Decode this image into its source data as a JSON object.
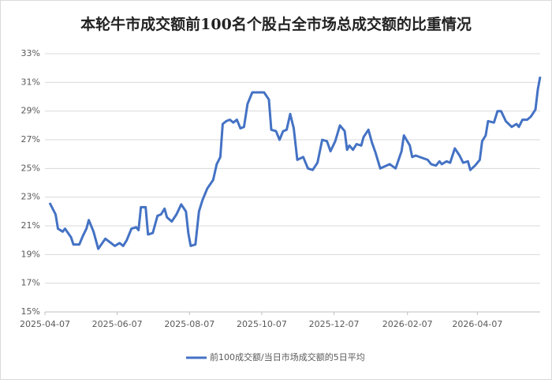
{
  "chart_data": {
    "type": "line",
    "title": "本轮牛市成交额前100名个股占全市场总成交额的比重情况",
    "x": [
      "2025-04-11",
      "2025-04-16",
      "2025-04-18",
      "2025-04-22",
      "2025-04-24",
      "2025-04-29",
      "2025-05-01",
      "2025-05-06",
      "2025-05-09",
      "2025-05-12",
      "2025-05-14",
      "2025-05-18",
      "2025-05-22",
      "2025-05-28",
      "2025-06-05",
      "2025-06-09",
      "2025-06-12",
      "2025-06-15",
      "2025-06-19",
      "2025-06-23",
      "2025-06-25",
      "2025-06-27",
      "2025-07-01",
      "2025-07-03",
      "2025-07-07",
      "2025-07-11",
      "2025-07-14",
      "2025-07-17",
      "2025-07-19",
      "2025-07-23",
      "2025-07-27",
      "2025-07-31",
      "2025-08-04",
      "2025-08-06",
      "2025-08-08",
      "2025-08-12",
      "2025-08-15",
      "2025-08-18",
      "2025-08-22",
      "2025-08-27",
      "2025-08-30",
      "2025-09-02",
      "2025-09-04",
      "2025-09-07",
      "2025-09-10",
      "2025-09-13",
      "2025-09-16",
      "2025-09-19",
      "2025-09-22",
      "2025-09-25",
      "2025-09-29",
      "2025-10-09",
      "2025-10-13",
      "2025-10-15",
      "2025-10-19",
      "2025-10-22",
      "2025-10-25",
      "2025-10-28",
      "2025-10-31",
      "2025-11-03",
      "2025-11-06",
      "2025-11-11",
      "2025-11-15",
      "2025-11-19",
      "2025-11-23",
      "2025-11-27",
      "2025-12-01",
      "2025-12-04",
      "2025-12-08",
      "2025-12-12",
      "2025-12-16",
      "2025-12-18",
      "2025-12-20",
      "2025-12-23",
      "2025-12-26",
      "2025-12-30",
      "2026-01-01",
      "2026-01-05",
      "2026-01-08",
      "2026-01-11",
      "2026-01-15",
      "2026-01-23",
      "2026-01-28",
      "2026-02-02",
      "2026-02-04",
      "2026-02-09",
      "2026-02-11",
      "2026-02-14",
      "2026-02-24",
      "2026-02-27",
      "2026-03-03",
      "2026-03-06",
      "2026-03-08",
      "2026-03-12",
      "2026-03-15",
      "2026-03-19",
      "2026-03-23",
      "2026-03-26",
      "2026-03-30",
      "2026-04-01",
      "2026-04-05",
      "2026-04-09",
      "2026-04-11",
      "2026-04-14",
      "2026-04-16",
      "2026-04-21",
      "2026-04-24",
      "2026-04-27",
      "2026-05-01",
      "2026-05-06",
      "2026-05-10",
      "2026-05-12",
      "2026-05-15",
      "2026-05-19",
      "2026-05-22",
      "2026-05-26",
      "2026-05-28",
      "2026-05-30"
    ],
    "series": [
      {
        "name": "前100成交额/当日市场成交额的5日平均",
        "color": "#4472c4",
        "values": [
          22.6,
          21.8,
          20.8,
          20.6,
          20.8,
          20.2,
          19.7,
          19.7,
          20.3,
          20.8,
          21.4,
          20.6,
          19.4,
          20.1,
          19.6,
          19.8,
          19.6,
          20.0,
          20.8,
          20.9,
          20.7,
          22.3,
          22.3,
          20.4,
          20.5,
          21.7,
          21.8,
          22.2,
          21.6,
          21.3,
          21.8,
          22.5,
          22.0,
          20.5,
          19.6,
          19.7,
          22.0,
          22.8,
          23.6,
          24.2,
          25.3,
          25.8,
          28.1,
          28.3,
          28.4,
          28.2,
          28.4,
          27.8,
          27.9,
          29.5,
          30.3,
          30.3,
          29.8,
          27.7,
          27.6,
          27.0,
          27.6,
          27.7,
          28.8,
          27.8,
          25.6,
          25.8,
          25.0,
          24.9,
          25.4,
          27.0,
          26.9,
          26.2,
          26.9,
          28.0,
          27.6,
          26.3,
          26.6,
          26.3,
          26.7,
          26.6,
          27.2,
          27.7,
          26.8,
          26.1,
          25.0,
          25.3,
          25.0,
          26.2,
          27.3,
          26.6,
          25.8,
          25.9,
          25.6,
          25.3,
          25.2,
          25.5,
          25.3,
          25.5,
          25.4,
          26.4,
          25.9,
          25.4,
          25.5,
          24.9,
          25.2,
          25.6,
          26.9,
          27.3,
          28.3,
          28.2,
          29.0,
          29.0,
          28.3,
          27.9,
          28.1,
          27.9,
          28.4,
          28.4,
          28.6,
          29.1,
          30.5,
          31.4
        ]
      }
    ],
    "xlim": [
      "2025-04-07",
      "2026-05-30"
    ],
    "xticks": [
      "2025-04-07",
      "2025-06-07",
      "2025-08-07",
      "2025-10-07",
      "2025-12-07",
      "2026-02-07",
      "2026-04-07"
    ],
    "ylim": [
      15,
      33
    ],
    "yticks": [
      {
        "value": 15,
        "label": "15%"
      },
      {
        "value": 17,
        "label": "17%"
      },
      {
        "value": 19,
        "label": "19%"
      },
      {
        "value": 21,
        "label": "21%"
      },
      {
        "value": 23,
        "label": "23%"
      },
      {
        "value": 25,
        "label": "25%"
      },
      {
        "value": 27,
        "label": "27%"
      },
      {
        "value": 29,
        "label": "29%"
      },
      {
        "value": 31,
        "label": "31%"
      },
      {
        "value": 33,
        "label": "33%"
      }
    ],
    "grid": true,
    "legend": "bottom"
  }
}
